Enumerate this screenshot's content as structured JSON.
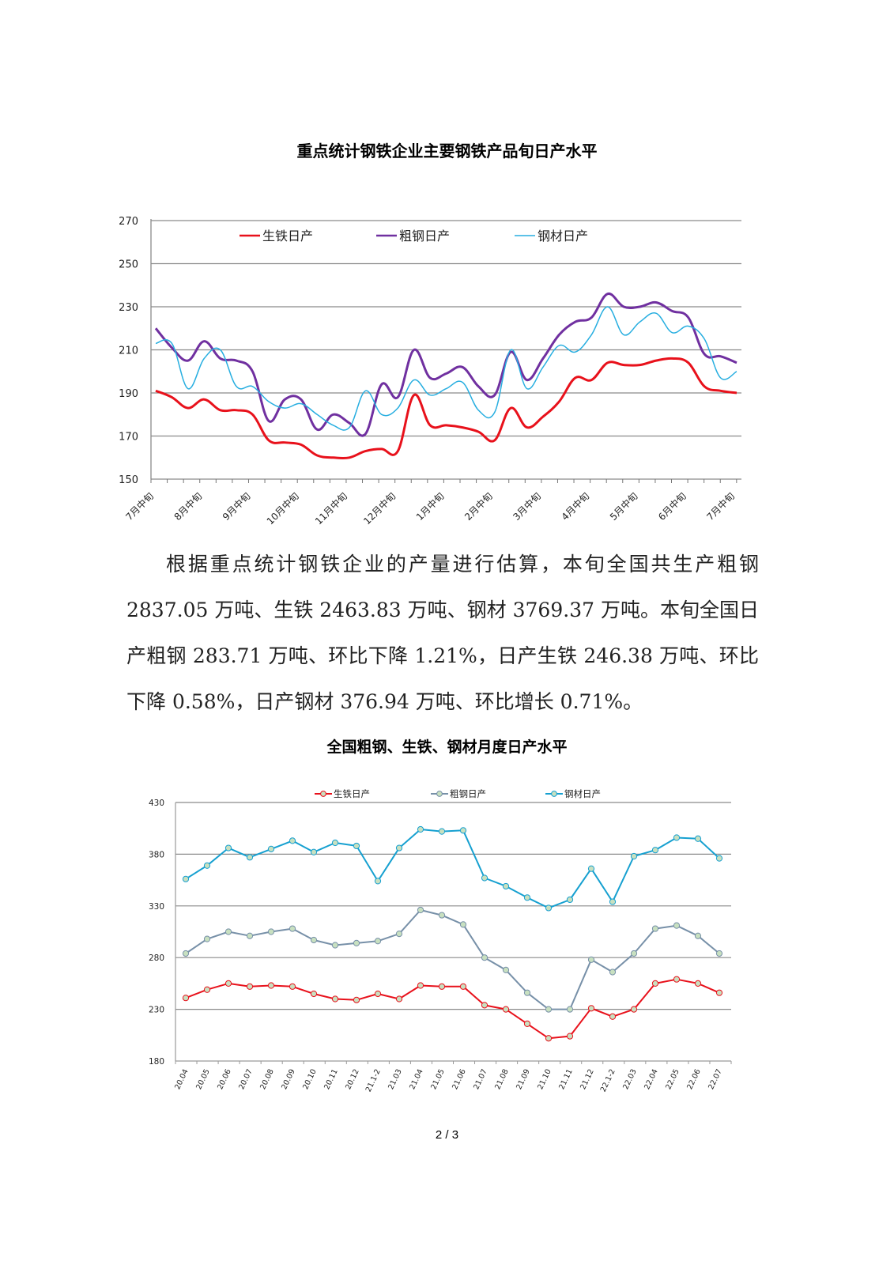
{
  "chart1_title": "重点统计钢铁企业主要钢铁产品旬日产水平",
  "chart2_title": "全国粗钢、生铁、钢材月度日产水平",
  "paragraph": "根据重点统计钢铁企业的产量进行估算，本旬全国共生产粗钢 2837.05 万吨、生铁 2463.83 万吨、钢材 3769.37 万吨。本旬全国日产粗钢 283.71 万吨、环比下降 1.21%，日产生铁 246.38 万吨、环比下降 0.58%，日产钢材 376.94 万吨、环比增长 0.71%。",
  "page_number": "2 / 3",
  "chart_data": [
    {
      "type": "line",
      "title": "重点统计钢铁企业主要钢铁产品旬日产水平",
      "xlabel": "",
      "ylabel": "",
      "ylim": [
        150,
        270
      ],
      "yticks": [
        150,
        170,
        190,
        210,
        230,
        250,
        270
      ],
      "grid": true,
      "legend_position": "top-inside",
      "smooth": true,
      "x_tick_labels": [
        "7月中旬",
        "8月中旬",
        "9月中旬",
        "10月中旬",
        "11月中旬",
        "12月中旬",
        "1月中旬",
        "2月中旬",
        "3月中旬",
        "4月中旬",
        "5月中旬",
        "6月中旬",
        "7月中旬"
      ],
      "x_count": 37,
      "series": [
        {
          "name": "生铁日产",
          "color": "#e8111b",
          "width": 3,
          "values": [
            191,
            188,
            183,
            187,
            182,
            182,
            180,
            168,
            167,
            166,
            161,
            160,
            160,
            163,
            164,
            163,
            189,
            175,
            175,
            174,
            172,
            168,
            183,
            174,
            179,
            186,
            197,
            196,
            204,
            203,
            203,
            205,
            206,
            204,
            193,
            191,
            190
          ]
        },
        {
          "name": "粗钢日产",
          "color": "#7030a0",
          "width": 3,
          "values": [
            220,
            211,
            205,
            214,
            206,
            205,
            200,
            177,
            187,
            187,
            173,
            180,
            176,
            171,
            194,
            188,
            210,
            197,
            199,
            202,
            193,
            189,
            209,
            196,
            206,
            217,
            223,
            225,
            236,
            230,
            230,
            232,
            228,
            225,
            208,
            207,
            204
          ]
        },
        {
          "name": "钢材日产",
          "color": "#27aee0",
          "width": 1.5,
          "values": [
            213,
            213,
            192,
            206,
            210,
            193,
            193,
            186,
            183,
            185,
            180,
            175,
            174,
            191,
            180,
            183,
            196,
            189,
            192,
            195,
            182,
            181,
            210,
            192,
            202,
            212,
            209,
            217,
            230,
            217,
            223,
            227,
            218,
            221,
            215,
            197,
            200
          ]
        }
      ]
    },
    {
      "type": "line",
      "title": "全国粗钢、生铁、钢材月度日产水平",
      "xlabel": "",
      "ylabel": "",
      "ylim": [
        180,
        430
      ],
      "yticks": [
        180,
        230,
        280,
        330,
        380,
        430
      ],
      "grid": true,
      "legend_position": "top",
      "markers": true,
      "categories": [
        "20.04",
        "20.05",
        "20.06",
        "20.07",
        "20.08",
        "20.09",
        "20.10",
        "20.11",
        "20.12",
        "21.1-2",
        "21.03",
        "21.04",
        "21.05",
        "21.06",
        "21.07",
        "21.08",
        "21.09",
        "21.10",
        "21.11",
        "21.12",
        "22.1-2",
        "22.03",
        "22.04",
        "22.05",
        "22.06",
        "22.07"
      ],
      "series": [
        {
          "name": "生铁日产",
          "color": "#e8111b",
          "values": [
            241,
            249,
            255,
            252,
            253,
            252,
            245,
            240,
            239,
            245,
            240,
            253,
            252,
            252,
            234,
            230,
            216,
            202,
            204,
            231,
            223,
            230,
            255,
            259,
            255,
            246
          ]
        },
        {
          "name": "粗钢日产",
          "color": "#7790a8",
          "values": [
            284,
            298,
            305,
            301,
            305,
            308,
            297,
            292,
            294,
            296,
            303,
            326,
            321,
            312,
            280,
            268,
            246,
            230,
            230,
            278,
            266,
            284,
            308,
            311,
            301,
            284
          ]
        },
        {
          "name": "钢材日产",
          "color": "#16a0d0",
          "values": [
            356,
            369,
            386,
            377,
            385,
            393,
            382,
            391,
            388,
            354,
            386,
            404,
            402,
            403,
            357,
            349,
            338,
            328,
            336,
            366,
            334,
            378,
            384,
            396,
            395,
            376
          ]
        }
      ]
    }
  ]
}
